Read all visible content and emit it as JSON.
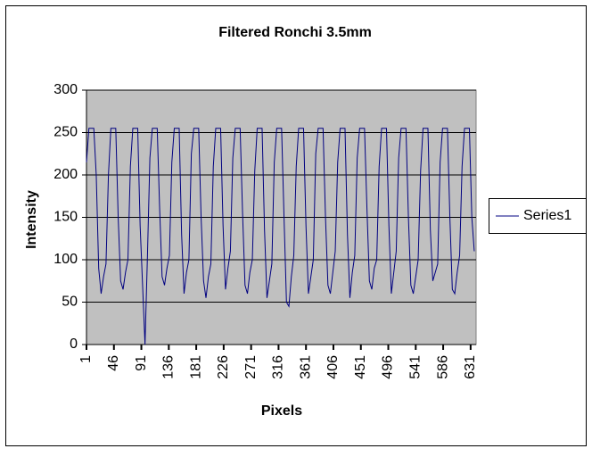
{
  "chart_data": {
    "type": "line",
    "title": "Filtered Ronchi 3.5mm",
    "x_label": "Pixels",
    "y_label": "Intensity",
    "x": [
      1,
      5,
      9,
      13,
      17,
      21,
      25,
      29,
      33,
      37,
      41,
      45,
      49,
      53,
      57,
      61,
      65,
      69,
      73,
      77,
      81,
      85,
      89,
      93,
      97,
      101,
      105,
      109,
      113,
      117,
      121,
      125,
      129,
      133,
      137,
      141,
      145,
      149,
      153,
      157,
      161,
      165,
      169,
      173,
      177,
      181,
      185,
      189,
      193,
      197,
      201,
      205,
      209,
      213,
      217,
      221,
      225,
      229,
      233,
      237,
      241,
      245,
      249,
      253,
      257,
      261,
      265,
      269,
      273,
      277,
      281,
      285,
      289,
      293,
      297,
      301,
      305,
      309,
      313,
      317,
      321,
      325,
      329,
      333,
      337,
      341,
      345,
      349,
      353,
      357,
      361,
      365,
      369,
      373,
      377,
      381,
      385,
      389,
      393,
      397,
      401,
      405,
      409,
      413,
      417,
      421,
      425,
      429,
      433,
      437,
      441,
      445,
      449,
      453,
      457,
      461,
      465,
      469,
      473,
      477,
      481,
      485,
      489,
      493,
      497,
      501,
      505,
      509,
      513,
      517,
      521,
      525,
      529,
      533,
      537,
      541,
      545,
      549,
      553,
      557,
      561,
      565,
      569,
      573,
      577,
      581,
      585,
      589,
      593,
      597,
      601,
      605,
      609,
      613,
      617,
      621,
      625,
      629,
      633,
      637
    ],
    "series": [
      {
        "name": "Series1",
        "color": "#000080",
        "values": [
          215,
          255,
          255,
          255,
          200,
          90,
          60,
          80,
          95,
          200,
          255,
          255,
          255,
          150,
          75,
          65,
          85,
          100,
          210,
          255,
          255,
          255,
          140,
          70,
          0,
          105,
          220,
          255,
          255,
          255,
          160,
          80,
          70,
          90,
          105,
          215,
          255,
          255,
          255,
          130,
          60,
          85,
          100,
          225,
          255,
          255,
          255,
          150,
          75,
          55,
          80,
          95,
          210,
          255,
          255,
          255,
          140,
          65,
          90,
          110,
          220,
          255,
          255,
          255,
          155,
          70,
          60,
          85,
          100,
          205,
          255,
          255,
          255,
          135,
          55,
          75,
          95,
          215,
          255,
          255,
          255,
          150,
          50,
          45,
          80,
          105,
          210,
          255,
          255,
          255,
          140,
          60,
          80,
          100,
          225,
          255,
          255,
          255,
          150,
          70,
          60,
          85,
          110,
          215,
          255,
          255,
          255,
          130,
          55,
          85,
          105,
          220,
          255,
          255,
          255,
          160,
          75,
          65,
          90,
          100,
          210,
          255,
          255,
          255,
          140,
          60,
          85,
          110,
          220,
          255,
          255,
          255,
          150,
          70,
          60,
          80,
          100,
          205,
          255,
          255,
          255,
          135,
          75,
          85,
          95,
          215,
          255,
          255,
          255,
          150,
          65,
          60,
          85,
          105,
          210,
          255,
          255,
          255,
          150,
          110
        ]
      }
    ],
    "xlim": [
      1,
      640
    ],
    "xticks": [
      1,
      46,
      91,
      136,
      181,
      226,
      271,
      316,
      361,
      406,
      451,
      496,
      541,
      586,
      631
    ],
    "ylim": [
      0,
      300
    ],
    "yticks": [
      0,
      50,
      100,
      150,
      200,
      250,
      300
    ],
    "grid": true,
    "plot_background": "#c0c0c0"
  }
}
